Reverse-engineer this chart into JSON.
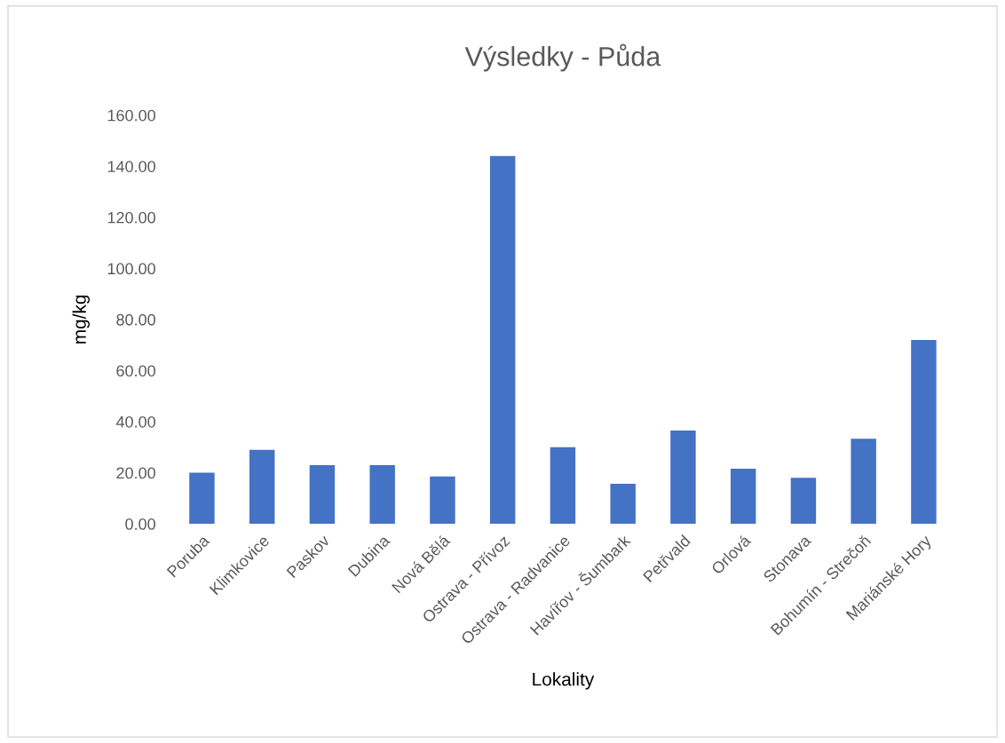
{
  "chart_data": {
    "type": "bar",
    "title": "Výsledky - Půda",
    "xlabel": "Lokality",
    "ylabel": "mg/kg",
    "categories": [
      "Poruba",
      "Klimkovice",
      "Paskov",
      "Dubina",
      "Nová Bělá",
      "Ostrava - Přívoz",
      "Ostrava - Radvanice",
      "Havířov - Šumbark",
      "Petřvald",
      "Orlová",
      "Stonava",
      "Bohumín - Strečoň",
      "Mariánské Hory"
    ],
    "values": [
      20,
      29,
      23,
      23,
      18.5,
      144,
      30,
      15.7,
      36.5,
      21.6,
      18,
      33.3,
      72
    ],
    "color": "#4472c4",
    "ylim": [
      0,
      160
    ],
    "yticks": [
      {
        "value": 0,
        "label": "0.00"
      },
      {
        "value": 20,
        "label": "20.00"
      },
      {
        "value": 40,
        "label": "40.00"
      },
      {
        "value": 60,
        "label": "60.00"
      },
      {
        "value": 80,
        "label": "80.00"
      },
      {
        "value": 100,
        "label": "100.00"
      },
      {
        "value": 120,
        "label": "120.00"
      },
      {
        "value": 140,
        "label": "140.00"
      },
      {
        "value": 160,
        "label": "160.00"
      }
    ],
    "grid": false
  }
}
